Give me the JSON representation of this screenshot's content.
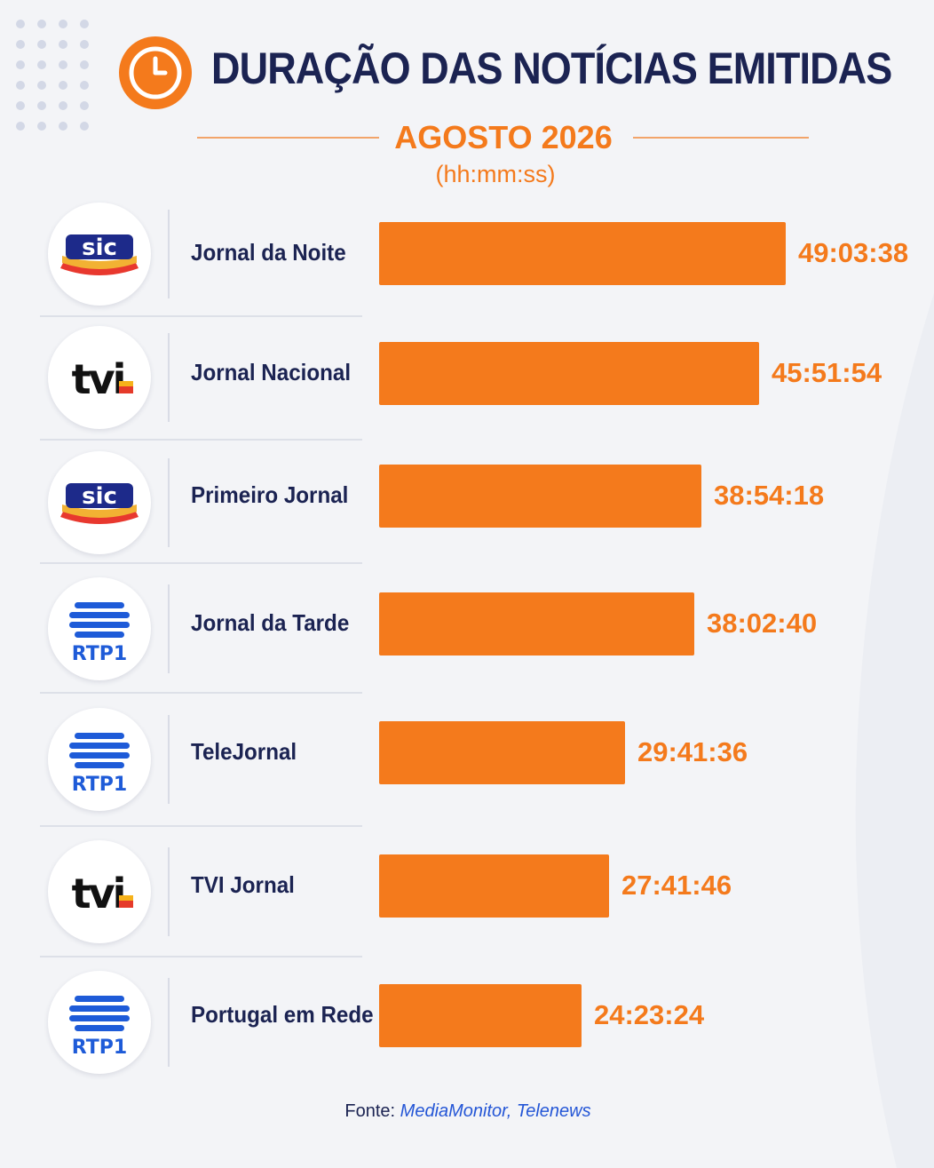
{
  "title": "DURAÇÃO DAS NOTÍCIAS EMITIDAS",
  "period": "AGOSTO 2026",
  "unit": "(hh:mm:ss)",
  "source": {
    "label": "Fonte:",
    "name": "MediaMonitor, Telenews"
  },
  "colors": {
    "accent": "#f47a1c",
    "title": "#1b2352",
    "source_link": "#2456d6"
  },
  "icons": {
    "header": "clock-icon"
  },
  "chart_data": {
    "type": "bar",
    "orientation": "horizontal",
    "categories": [
      "Jornal da Noite",
      "Jornal Nacional",
      "Primeiro Jornal",
      "Jornal da Tarde",
      "TeleJornal",
      "TVI Jornal",
      "Portugal em Rede"
    ],
    "channels": [
      "SIC",
      "TVI",
      "SIC",
      "RTP1",
      "RTP1",
      "TVI",
      "RTP1"
    ],
    "values": [
      "49:03:38",
      "45:51:54",
      "38:54:18",
      "38:02:40",
      "29:41:36",
      "27:41:46",
      "24:23:24"
    ],
    "value_unit": "hh:mm:ss",
    "bar_color": "#f47a1c"
  }
}
